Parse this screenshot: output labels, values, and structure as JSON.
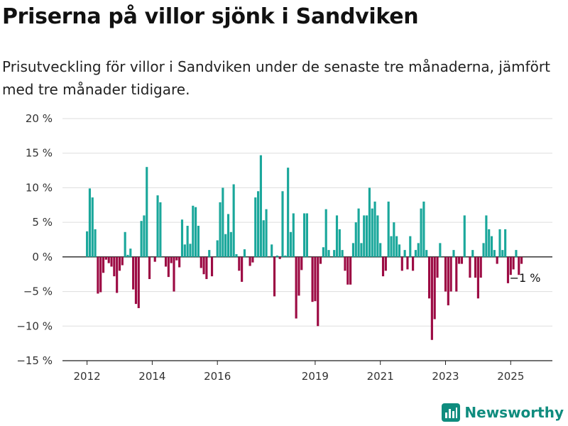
{
  "title": "Priserna på villor sjönk i Sandviken",
  "subtitle": "Prisutveckling för villor i Sandviken under de senaste tre månaderna, jämfört med tre månader tidigare.",
  "brand": "Newsworthy",
  "colors": {
    "positive": "#1aa79b",
    "negative": "#9c0a43",
    "grid": "#dddddd",
    "brand": "#0f8c7e"
  },
  "chart_data": {
    "type": "bar",
    "title": "Priserna på villor sjönk i Sandviken",
    "xlabel": "",
    "ylabel": "",
    "ylim": [
      -15,
      20
    ],
    "y_ticks": [
      -15,
      -10,
      -5,
      0,
      5,
      10,
      15,
      20
    ],
    "y_tick_labels": [
      "−15 %",
      "−10 %",
      "−5 %",
      "0 %",
      "5 %",
      "10 %",
      "15 %",
      "20 %"
    ],
    "x_ticks": [
      2012,
      2014,
      2016,
      2019,
      2021,
      2023,
      2025
    ],
    "x_tick_labels": [
      "2012",
      "2014",
      "2016",
      "2019",
      "2021",
      "2023",
      "2025"
    ],
    "grid": "horizontal",
    "last_value_label": "−1 %",
    "series": [
      {
        "frequency": "monthly",
        "start": "2012-01",
        "values": [
          3.7,
          9.9,
          8.6,
          4.0,
          -5.3,
          -5.1,
          -2.3,
          -0.4,
          -0.9,
          -1.4,
          -2.8,
          -5.2,
          -2.0,
          -1.2,
          3.6,
          0.3,
          1.2,
          -4.7,
          -6.8,
          -7.4,
          5.2,
          6.0,
          13.0,
          -3.2,
          0.0,
          -0.7,
          8.9,
          7.9,
          0.0,
          -1.4,
          -2.9,
          -0.9,
          -5.0,
          -0.5,
          -1.5,
          5.4,
          1.8,
          4.5,
          1.9,
          7.4,
          7.2,
          4.5,
          -1.6,
          -2.5,
          -3.2,
          1.0,
          -2.8,
          0.0,
          2.4,
          7.9,
          10.0,
          3.3,
          6.2,
          3.6,
          10.5,
          0.4,
          -2.0,
          -3.6,
          1.1,
          0.0,
          -1.3,
          -0.8,
          8.6,
          9.5,
          14.7,
          5.3,
          6.9,
          0.0,
          1.8,
          -5.7,
          0.2,
          -0.3,
          9.5,
          0.2,
          12.9,
          3.6,
          6.3,
          -8.9,
          -5.6,
          -1.9,
          6.3,
          6.3,
          0.0,
          -6.5,
          -6.4,
          -10.0,
          -1.0,
          1.4,
          6.9,
          1.0,
          0.0,
          1.0,
          6.0,
          4.0,
          1.0,
          -2.0,
          -4.0,
          -4.0,
          2.0,
          5.0,
          7.0,
          2.0,
          6.0,
          6.0,
          10.0,
          7.0,
          8.0,
          6.0,
          2.0,
          -2.8,
          -2.0,
          8.0,
          3.0,
          5.0,
          3.0,
          1.8,
          -2.0,
          1.0,
          -1.8,
          3.0,
          -2.0,
          1.0,
          2.0,
          7.0,
          8.0,
          1.0,
          -6.0,
          -12.0,
          -9.0,
          -3.0,
          2.0,
          0.0,
          -5.0,
          -7.0,
          -5.0,
          1.0,
          -5.0,
          -1.0,
          -1.0,
          6.0,
          0.0,
          -3.0,
          1.0,
          -3.0,
          -6.0,
          -3.0,
          2.0,
          6.0,
          4.0,
          3.0,
          1.0,
          -1.0,
          4.0,
          1.0,
          4.0,
          -3.8,
          -2.6,
          -1.8,
          1.0,
          -2.6,
          -1.0
        ]
      }
    ]
  }
}
